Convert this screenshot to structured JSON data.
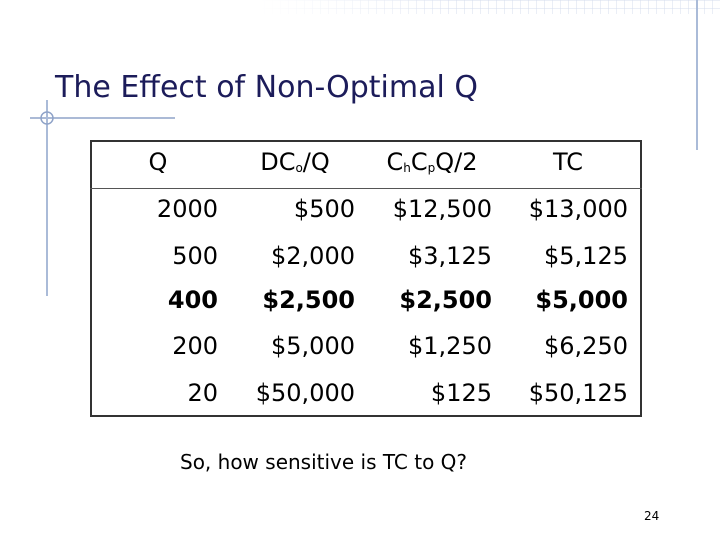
{
  "title": "The Effect of Non-Optimal Q",
  "table": {
    "header": [
      [
        {
          "text": "Q",
          "sub": false
        }
      ],
      [
        {
          "text": "DC",
          "sub": false
        },
        {
          "text": "o",
          "sub": true
        },
        {
          "text": "/Q",
          "sub": false
        }
      ],
      [
        {
          "text": "C",
          "sub": false
        },
        {
          "text": "h",
          "sub": true
        },
        {
          "text": "C",
          "sub": false
        },
        {
          "text": "p",
          "sub": true
        },
        {
          "text": "Q/2",
          "sub": false
        }
      ],
      [
        {
          "text": "TC",
          "sub": false
        }
      ]
    ],
    "rows": [
      {
        "cells": [
          "2000",
          "$500",
          "$12,500",
          "$13,000"
        ],
        "bold": false
      },
      {
        "cells": [
          "500",
          "$2,000",
          "$3,125",
          "$5,125"
        ],
        "bold": false
      },
      {
        "cells": [
          "400",
          "$2,500",
          "$2,500",
          "$5,000"
        ],
        "bold": true
      },
      {
        "cells": [
          "200",
          "$5,000",
          "$1,250",
          "$6,250"
        ],
        "bold": false
      },
      {
        "cells": [
          "20",
          "$50,000",
          "$125",
          "$50,125"
        ],
        "bold": false
      }
    ]
  },
  "question": "So, how sensitive is TC to Q?",
  "page_number": "24"
}
